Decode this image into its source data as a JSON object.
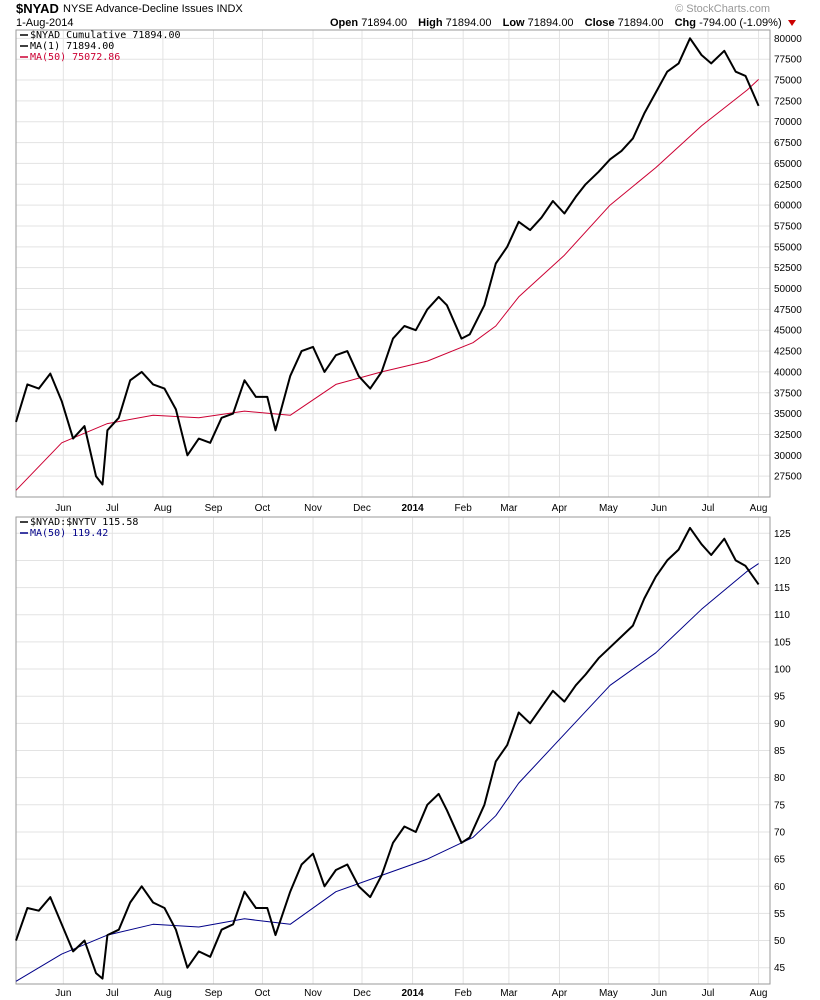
{
  "header": {
    "symbol": "$NYAD",
    "description": "NYSE Advance-Decline Issues INDX",
    "brand": "© StockCharts.com",
    "date": "1-Aug-2014",
    "open_label": "Open",
    "open": "71894.00",
    "high_label": "High",
    "high": "71894.00",
    "low_label": "Low",
    "low": "71894.00",
    "close_label": "Close",
    "close": "71894.00",
    "chg_label": "Chg",
    "chg": "-794.00 (-1.09%)",
    "chg_icon": "down-triangle-icon",
    "chg_color": "#cc0000"
  },
  "x_axis": {
    "month_labels": [
      "Jun",
      "Jul",
      "Aug",
      "Sep",
      "Oct",
      "Nov",
      "Dec",
      "2014",
      "Feb",
      "Mar",
      "Apr",
      "May",
      "Jun",
      "Jul",
      "Aug"
    ],
    "month_values": [
      "2013-06-01",
      "2013-07-01",
      "2013-08-01",
      "2013-09-01",
      "2013-10-01",
      "2013-11-01",
      "2013-12-01",
      "2014-01-01",
      "2014-02-01",
      "2014-03-01",
      "2014-04-01",
      "2014-05-01",
      "2014-06-01",
      "2014-07-01",
      "2014-08-01"
    ],
    "bold_label": "2014",
    "range": [
      "2013-05-03",
      "2014-08-08"
    ]
  },
  "chart_data": [
    {
      "type": "line",
      "title": "$NYAD NYSE Advance-Decline Issues INDX",
      "ylim": [
        25000,
        81000
      ],
      "yticks": [
        27500,
        30000,
        32500,
        35000,
        37500,
        40000,
        42500,
        45000,
        47500,
        50000,
        52500,
        55000,
        57500,
        60000,
        62500,
        65000,
        67500,
        70000,
        72500,
        75000,
        77500,
        80000
      ],
      "grid": true,
      "legend_position": "top-left",
      "legend": [
        "$NYAD Cumulative 71894.00",
        "MA(1) 71894.00",
        "MA(50) 75072.86"
      ],
      "series": [
        {
          "name": "$NYAD Cumulative",
          "color": "#000000",
          "x": [
            "2013-05-03",
            "2013-05-10",
            "2013-05-17",
            "2013-05-24",
            "2013-05-31",
            "2013-06-07",
            "2013-06-14",
            "2013-06-21",
            "2013-06-25",
            "2013-06-28",
            "2013-07-05",
            "2013-07-12",
            "2013-07-19",
            "2013-07-26",
            "2013-08-02",
            "2013-08-09",
            "2013-08-16",
            "2013-08-23",
            "2013-08-30",
            "2013-09-06",
            "2013-09-13",
            "2013-09-20",
            "2013-09-27",
            "2013-10-04",
            "2013-10-09",
            "2013-10-18",
            "2013-10-25",
            "2013-11-01",
            "2013-11-08",
            "2013-11-15",
            "2013-11-22",
            "2013-11-29",
            "2013-12-06",
            "2013-12-13",
            "2013-12-20",
            "2013-12-27",
            "2014-01-03",
            "2014-01-10",
            "2014-01-17",
            "2014-01-22",
            "2014-01-31",
            "2014-02-05",
            "2014-02-14",
            "2014-02-21",
            "2014-02-28",
            "2014-03-07",
            "2014-03-14",
            "2014-03-21",
            "2014-03-28",
            "2014-04-04",
            "2014-04-11",
            "2014-04-17",
            "2014-04-25",
            "2014-05-02",
            "2014-05-09",
            "2014-05-16",
            "2014-05-23",
            "2014-05-30",
            "2014-06-06",
            "2014-06-13",
            "2014-06-20",
            "2014-06-27",
            "2014-07-03",
            "2014-07-11",
            "2014-07-18",
            "2014-07-24",
            "2014-08-01"
          ],
          "values": [
            34000,
            38500,
            38000,
            39800,
            36500,
            32000,
            33500,
            27500,
            26500,
            33000,
            34500,
            39000,
            40000,
            38500,
            38000,
            35500,
            30000,
            32000,
            31500,
            34500,
            35000,
            39000,
            37000,
            37000,
            33000,
            39500,
            42500,
            43000,
            40000,
            42000,
            42500,
            39500,
            38000,
            40000,
            44000,
            45500,
            45000,
            47500,
            49000,
            48000,
            44000,
            44500,
            48000,
            53000,
            55000,
            58000,
            57000,
            58500,
            60500,
            59000,
            61000,
            62500,
            64000,
            65500,
            66500,
            68000,
            71000,
            73500,
            76000,
            77000,
            80000,
            78000,
            77000,
            78500,
            76000,
            75500,
            71894
          ]
        },
        {
          "name": "MA(50)",
          "color": "#cc0033",
          "x": [
            "2013-05-03",
            "2013-05-31",
            "2013-06-28",
            "2013-07-26",
            "2013-08-23",
            "2013-09-20",
            "2013-10-18",
            "2013-11-15",
            "2013-12-13",
            "2014-01-10",
            "2014-02-07",
            "2014-02-21",
            "2014-03-07",
            "2014-04-04",
            "2014-05-02",
            "2014-05-30",
            "2014-06-27",
            "2014-07-25",
            "2014-08-01"
          ],
          "values": [
            25800,
            31500,
            33800,
            34800,
            34500,
            35300,
            34800,
            38500,
            40000,
            41300,
            43500,
            45500,
            49000,
            54000,
            60000,
            64500,
            69500,
            73800,
            75073
          ]
        }
      ]
    },
    {
      "type": "line",
      "title": "$NYAD:$NYTV",
      "ylim": [
        42,
        128
      ],
      "yticks": [
        45,
        50,
        55,
        60,
        65,
        70,
        75,
        80,
        85,
        90,
        95,
        100,
        105,
        110,
        115,
        120,
        125
      ],
      "grid": true,
      "legend_position": "top-left",
      "legend": [
        "$NYAD:$NYTV 115.58",
        "MA(50) 119.42"
      ],
      "series": [
        {
          "name": "$NYAD:$NYTV",
          "color": "#000000",
          "x": [
            "2013-05-03",
            "2013-05-10",
            "2013-05-17",
            "2013-05-24",
            "2013-05-31",
            "2013-06-07",
            "2013-06-14",
            "2013-06-21",
            "2013-06-25",
            "2013-06-28",
            "2013-07-05",
            "2013-07-12",
            "2013-07-19",
            "2013-07-26",
            "2013-08-02",
            "2013-08-09",
            "2013-08-16",
            "2013-08-23",
            "2013-08-30",
            "2013-09-06",
            "2013-09-13",
            "2013-09-20",
            "2013-09-27",
            "2013-10-04",
            "2013-10-09",
            "2013-10-18",
            "2013-10-25",
            "2013-11-01",
            "2013-11-08",
            "2013-11-15",
            "2013-11-22",
            "2013-11-29",
            "2013-12-06",
            "2013-12-13",
            "2013-12-20",
            "2013-12-27",
            "2014-01-03",
            "2014-01-10",
            "2014-01-17",
            "2014-01-22",
            "2014-01-31",
            "2014-02-05",
            "2014-02-14",
            "2014-02-21",
            "2014-02-28",
            "2014-03-07",
            "2014-03-14",
            "2014-03-21",
            "2014-03-28",
            "2014-04-04",
            "2014-04-11",
            "2014-04-17",
            "2014-04-25",
            "2014-05-02",
            "2014-05-09",
            "2014-05-16",
            "2014-05-23",
            "2014-05-30",
            "2014-06-06",
            "2014-06-13",
            "2014-06-20",
            "2014-06-27",
            "2014-07-03",
            "2014-07-11",
            "2014-07-18",
            "2014-07-24",
            "2014-08-01"
          ],
          "values": [
            50,
            56,
            55.5,
            58,
            53,
            48,
            50,
            44,
            43,
            51,
            52,
            57,
            60,
            57,
            56,
            52,
            45,
            48,
            47,
            52,
            53,
            59,
            56,
            56,
            51,
            59,
            64,
            66,
            60,
            63,
            64,
            60,
            58,
            62,
            68,
            71,
            70,
            75,
            77,
            74,
            68,
            69,
            75,
            83,
            86,
            92,
            90,
            93,
            96,
            94,
            97,
            99,
            102,
            104,
            106,
            108,
            113,
            117,
            120,
            122,
            126,
            123,
            121,
            124,
            120,
            119,
            115.58
          ]
        },
        {
          "name": "MA(50)",
          "color": "#000088",
          "x": [
            "2013-05-03",
            "2013-05-31",
            "2013-06-28",
            "2013-07-26",
            "2013-08-23",
            "2013-09-20",
            "2013-10-18",
            "2013-11-15",
            "2013-12-13",
            "2014-01-10",
            "2014-02-07",
            "2014-02-21",
            "2014-03-07",
            "2014-04-04",
            "2014-05-02",
            "2014-05-30",
            "2014-06-27",
            "2014-07-25",
            "2014-08-01"
          ],
          "values": [
            42.5,
            47.5,
            51,
            53,
            52.5,
            54,
            53,
            59,
            62,
            65,
            69,
            73,
            79,
            88,
            97,
            103,
            111,
            118,
            119.42
          ]
        }
      ]
    }
  ]
}
